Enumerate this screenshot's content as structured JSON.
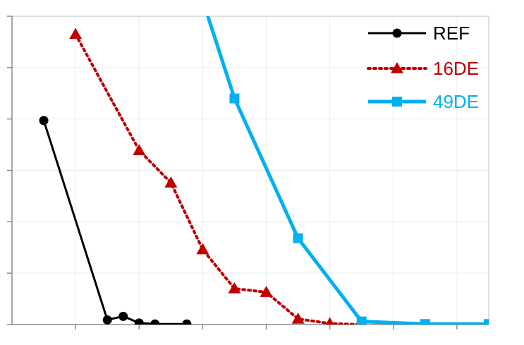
{
  "chart_data": {
    "type": "line",
    "title": "",
    "xlabel": "",
    "ylabel": "",
    "xlim": [
      0,
      15
    ],
    "ylim": [
      0,
      6
    ],
    "x_tick_values": [
      2,
      4,
      6,
      8,
      10,
      12,
      14
    ],
    "y_tick_values": [
      0,
      1,
      2,
      3,
      4,
      5,
      6
    ],
    "grid": true,
    "legend_position": "top-right",
    "series": [
      {
        "name": "REF",
        "color": "#000000",
        "line_style": "solid",
        "marker": "circle",
        "points": [
          {
            "x": 1,
            "y": 3.97
          },
          {
            "x": 3,
            "y": 0.09
          },
          {
            "x": 3.5,
            "y": 0.16
          },
          {
            "x": 4,
            "y": 0.03
          },
          {
            "x": 4.5,
            "y": 0.01
          },
          {
            "x": 5.5,
            "y": 0.01
          }
        ]
      },
      {
        "name": "16DE",
        "color": "#c00000",
        "line_style": "dotted",
        "marker": "triangle",
        "points": [
          {
            "x": 2,
            "y": 5.65
          },
          {
            "x": 4,
            "y": 3.39
          },
          {
            "x": 5,
            "y": 2.76
          },
          {
            "x": 6,
            "y": 1.46
          },
          {
            "x": 7,
            "y": 0.7
          },
          {
            "x": 8,
            "y": 0.63
          },
          {
            "x": 9,
            "y": 0.11
          },
          {
            "x": 10,
            "y": 0.02
          },
          {
            "x": 11,
            "y": 0.0
          }
        ]
      },
      {
        "name": "49DE",
        "color": "#00b0f0",
        "line_style": "solid",
        "marker": "square",
        "points": [
          {
            "x": 5.8,
            "y": 6.69
          },
          {
            "x": 7,
            "y": 4.4
          },
          {
            "x": 9,
            "y": 1.68
          },
          {
            "x": 11,
            "y": 0.06
          },
          {
            "x": 13,
            "y": 0.01
          },
          {
            "x": 15,
            "y": 0.01
          }
        ]
      }
    ]
  }
}
